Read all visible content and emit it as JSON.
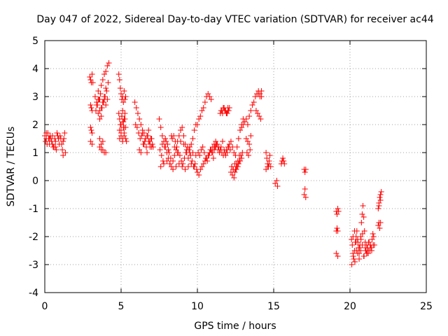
{
  "chart_data": {
    "type": "scatter",
    "title": "Day 047 of 2022, Sidereal Day-to-day VTEC variation (SDTVAR) for receiver ac44",
    "xlabel": "GPS time / hours",
    "ylabel": "SDTVAR / TECUs",
    "xlim": [
      0,
      25
    ],
    "ylim": [
      -4,
      5
    ],
    "xticks": [
      0,
      5,
      10,
      15,
      20,
      25
    ],
    "yticks": [
      -4,
      -3,
      -2,
      -1,
      0,
      1,
      2,
      3,
      4,
      5
    ],
    "grid": true,
    "marker": "plus",
    "color": "#ff0000",
    "series": [
      {
        "name": "SDTVAR",
        "x": [
          0.0,
          0.1,
          0.2,
          0.3,
          0.4,
          0.5,
          0.6,
          0.7,
          0.8,
          0.9,
          1.0,
          1.1,
          1.2,
          1.3,
          0.05,
          0.15,
          0.25,
          0.35,
          0.45,
          0.55,
          0.65,
          0.75,
          0.85,
          0.95,
          1.05,
          1.15,
          1.25,
          1.35,
          0.1,
          0.3,
          0.5,
          0.7,
          0.9,
          1.2,
          2.95,
          3.0,
          3.05,
          3.1,
          3.15,
          3.0,
          3.05,
          3.1,
          3.0,
          3.05,
          3.1,
          3.0,
          3.1,
          3.3,
          3.4,
          3.5,
          3.6,
          3.7,
          3.8,
          3.9,
          4.0,
          4.1,
          4.2,
          3.35,
          3.45,
          3.55,
          3.65,
          3.75,
          3.85,
          3.95,
          4.05,
          4.15,
          3.5,
          3.6,
          3.7,
          3.8,
          3.9,
          4.0,
          3.6,
          3.7,
          3.8,
          3.9,
          4.0,
          3.4,
          3.5,
          3.6,
          3.7,
          3.8,
          3.9,
          4.0,
          4.1,
          3.6,
          3.7,
          3.8,
          4.85,
          4.9,
          4.95,
          5.0,
          5.05,
          5.1,
          5.15,
          5.2,
          5.25,
          5.3,
          4.85,
          4.9,
          4.95,
          5.0,
          5.05,
          5.1,
          5.15,
          5.2,
          5.25,
          4.9,
          5.0,
          5.1,
          5.2,
          5.3,
          5.0,
          5.05,
          5.1,
          5.15,
          5.2,
          5.25,
          4.9,
          5.0,
          5.1,
          5.2,
          5.3,
          5.35,
          5.9,
          6.0,
          6.1,
          6.2,
          6.3,
          6.4,
          6.5,
          6.6,
          6.7,
          6.8,
          6.9,
          7.0,
          7.1,
          5.95,
          6.05,
          6.15,
          6.25,
          6.35,
          6.45,
          6.55,
          6.65,
          6.75,
          6.85,
          6.95,
          7.05,
          6.2,
          6.4,
          6.6,
          6.8,
          7.0,
          6.3,
          6.5,
          6.7,
          6.9,
          7.5,
          7.6,
          7.7,
          7.8,
          7.9,
          8.0,
          8.1,
          8.2,
          8.3,
          8.4,
          8.5,
          8.6,
          8.7,
          8.8,
          8.9,
          9.0,
          9.1,
          9.2,
          9.3,
          9.4,
          9.5,
          9.6,
          9.7,
          9.8,
          9.9,
          7.55,
          7.65,
          7.75,
          7.85,
          7.95,
          8.05,
          8.15,
          8.25,
          8.35,
          8.45,
          8.55,
          8.65,
          8.75,
          8.85,
          8.95,
          9.05,
          9.15,
          9.25,
          9.35,
          9.45,
          9.55,
          9.65,
          9.75,
          9.85,
          9.95,
          7.6,
          7.8,
          8.0,
          8.2,
          8.4,
          8.6,
          8.8,
          9.0,
          9.2,
          9.4,
          9.6,
          9.8,
          7.7,
          7.9,
          8.1,
          8.3,
          8.5,
          8.7,
          8.9,
          9.1,
          9.3,
          9.5,
          9.7,
          9.9,
          10.0,
          10.1,
          10.2,
          10.3,
          10.4,
          10.5,
          10.6,
          10.7,
          10.8,
          10.9,
          11.0,
          11.1,
          11.2,
          11.3,
          11.4,
          11.5,
          11.6,
          11.7,
          11.8,
          11.9,
          12.0,
          12.1,
          12.2,
          12.3,
          12.4,
          12.5,
          12.6,
          12.7,
          12.8,
          12.9,
          13.0,
          10.05,
          10.15,
          10.25,
          10.35,
          10.45,
          10.55,
          10.65,
          10.75,
          10.85,
          10.95,
          11.05,
          11.15,
          11.25,
          11.35,
          11.45,
          11.55,
          11.65,
          11.75,
          11.85,
          11.95,
          12.05,
          12.15,
          12.25,
          12.35,
          12.45,
          12.55,
          12.65,
          12.75,
          12.85,
          12.95,
          10.0,
          10.1,
          10.2,
          10.3,
          10.4,
          10.5,
          10.6,
          10.7,
          10.8,
          10.9,
          11.0,
          11.1,
          11.2,
          11.3,
          11.4,
          11.5,
          11.6,
          11.7,
          11.8,
          11.9,
          12.0,
          11.5,
          11.6,
          11.7,
          11.8,
          11.9,
          12.0,
          12.1,
          11.55,
          11.65,
          11.75,
          11.85,
          11.95,
          12.05,
          12.2,
          12.3,
          12.4,
          12.5,
          12.6,
          12.7,
          12.8,
          12.9,
          12.25,
          12.35,
          12.45,
          12.55,
          12.65,
          12.75,
          12.8,
          12.9,
          13.0,
          13.1,
          13.2,
          13.3,
          13.4,
          13.5,
          13.6,
          13.7,
          13.8,
          13.9,
          14.0,
          14.1,
          14.2,
          13.85,
          13.95,
          14.05,
          14.15,
          14.0,
          14.1,
          14.2,
          13.2,
          13.3,
          13.4,
          13.5,
          13.25,
          13.35,
          13.45,
          14.5,
          14.55,
          14.6,
          14.65,
          14.7,
          14.75,
          14.8,
          14.5,
          14.6,
          14.7,
          15.1,
          15.2,
          15.25,
          15.5,
          15.55,
          15.6,
          15.65,
          15.7,
          17.0,
          17.05,
          17.1,
          17.0,
          17.05,
          17.1,
          19.1,
          19.15,
          19.2,
          19.25,
          19.1,
          19.15,
          19.2,
          19.1,
          19.2,
          20.1,
          20.15,
          20.2,
          20.25,
          20.3,
          20.35,
          20.4,
          20.45,
          20.5,
          20.55,
          20.6,
          20.65,
          20.7,
          20.75,
          20.8,
          20.85,
          20.9,
          20.95,
          21.0,
          21.05,
          21.1,
          21.15,
          21.2,
          21.25,
          21.3,
          21.35,
          21.4,
          21.45,
          21.5,
          21.55,
          21.6,
          20.12,
          20.22,
          20.32,
          20.42,
          20.52,
          20.62,
          20.72,
          20.82,
          20.92,
          21.02,
          21.12,
          21.22,
          21.32,
          21.42,
          21.52,
          20.2,
          20.3,
          20.4,
          20.5,
          20.6,
          20.7,
          20.8,
          20.9,
          21.0,
          21.1,
          21.2,
          21.85,
          21.9,
          21.95,
          22.0,
          22.05,
          21.85,
          21.9,
          21.95,
          22.0,
          21.9,
          22.0
        ],
        "y": [
          1.6,
          1.5,
          1.7,
          1.3,
          1.5,
          1.6,
          1.2,
          1.4,
          1.7,
          1.5,
          1.6,
          1.3,
          1.4,
          1.7,
          1.4,
          1.3,
          1.5,
          1.6,
          1.4,
          1.2,
          1.5,
          1.1,
          1.6,
          1.3,
          1.5,
          1.1,
          1.5,
          1.0,
          1.7,
          1.5,
          1.3,
          1.2,
          1.5,
          0.9,
          3.7,
          3.6,
          3.5,
          3.8,
          3.5,
          2.7,
          2.6,
          2.5,
          1.9,
          1.8,
          1.7,
          1.4,
          1.3,
          3.0,
          2.8,
          3.2,
          2.9,
          3.4,
          3.6,
          3.8,
          3.9,
          4.1,
          4.2,
          2.5,
          2.7,
          2.9,
          3.1,
          2.6,
          2.8,
          3.0,
          3.2,
          3.5,
          2.4,
          2.2,
          2.6,
          2.8,
          2.9,
          3.3,
          1.5,
          1.3,
          1.1,
          1.0,
          1.0,
          2.7,
          2.9,
          2.5,
          2.3,
          2.8,
          3.0,
          2.7,
          2.9,
          1.2,
          1.1,
          1.4,
          3.8,
          3.6,
          3.3,
          3.1,
          2.9,
          3.0,
          2.8,
          3.2,
          2.9,
          3.0,
          2.4,
          2.2,
          2.0,
          1.8,
          2.3,
          2.5,
          2.1,
          1.9,
          2.2,
          1.5,
          1.7,
          1.4,
          1.6,
          1.5,
          2.0,
          2.3,
          2.1,
          1.9,
          2.2,
          2.4,
          1.8,
          1.6,
          1.5,
          1.7,
          1.9,
          1.4,
          2.8,
          2.6,
          2.4,
          2.2,
          2.0,
          1.8,
          1.7,
          1.5,
          1.6,
          1.4,
          1.3,
          1.5,
          1.2,
          2.0,
          1.9,
          1.7,
          1.5,
          1.6,
          1.3,
          1.4,
          1.2,
          1.6,
          1.4,
          1.5,
          1.3,
          1.1,
          1.7,
          1.5,
          1.8,
          1.2,
          1.0,
          1.3,
          1.0,
          1.2,
          2.2,
          1.9,
          1.6,
          1.4,
          1.2,
          1.0,
          0.8,
          0.6,
          0.5,
          0.7,
          0.9,
          1.1,
          1.4,
          1.6,
          1.8,
          1.9,
          1.6,
          1.3,
          1.0,
          0.8,
          1.0,
          1.3,
          1.5,
          1.8,
          2.0,
          1.1,
          0.9,
          0.7,
          1.2,
          1.4,
          1.3,
          1.0,
          0.8,
          1.5,
          1.6,
          1.4,
          1.2,
          1.0,
          0.9,
          0.7,
          0.6,
          0.8,
          1.0,
          1.2,
          1.1,
          0.9,
          0.7,
          0.5,
          0.6,
          0.4,
          0.5,
          0.6,
          0.7,
          0.6,
          0.4,
          0.5,
          0.6,
          0.5,
          0.4,
          0.5,
          0.6,
          0.5,
          1.3,
          1.5,
          1.1,
          1.6,
          1.2,
          1.0,
          1.4,
          1.3,
          1.1,
          1.2,
          1.0,
          0.9,
          2.0,
          2.2,
          2.3,
          2.5,
          2.6,
          2.8,
          3.0,
          3.1,
          3.0,
          2.9,
          1.0,
          1.1,
          1.2,
          1.3,
          1.2,
          1.1,
          2.5,
          2.6,
          2.5,
          2.4,
          2.6,
          1.3,
          1.4,
          1.2,
          1.0,
          0.9,
          1.2,
          1.5,
          1.8,
          2.0,
          2.2,
          1.0,
          0.9,
          1.1,
          1.2,
          1.0,
          0.8,
          0.7,
          0.9,
          1.1,
          1.0,
          0.8,
          1.2,
          1.3,
          1.1,
          1.0,
          1.2,
          1.4,
          1.1,
          0.9,
          1.0,
          1.2,
          1.1,
          0.5,
          0.4,
          0.6,
          0.4,
          0.5,
          0.7,
          0.9,
          1.0,
          0.3,
          0.2,
          0.4,
          0.5,
          0.6,
          0.7,
          0.8,
          0.9,
          1.0,
          1.1,
          1.2,
          1.3,
          1.4,
          1.3,
          1.2,
          1.1,
          1.0,
          0.9,
          1.0,
          1.1,
          1.2,
          2.4,
          2.5,
          2.6,
          2.5,
          2.4,
          2.5,
          2.6,
          2.5,
          2.4,
          2.6,
          2.5,
          2.4,
          2.5,
          0.3,
          0.2,
          0.1,
          0.4,
          0.5,
          0.6,
          0.7,
          0.8,
          0.5,
          0.4,
          0.3,
          0.6,
          0.7,
          0.9,
          1.8,
          1.9,
          2.0,
          2.1,
          2.2,
          2.0,
          2.3,
          2.5,
          2.7,
          2.8,
          3.0,
          3.1,
          3.2,
          3.1,
          3.0,
          2.5,
          2.4,
          2.3,
          2.2,
          3.1,
          3.0,
          3.2,
          1.5,
          1.4,
          1.3,
          1.6,
          1.0,
          0.9,
          1.1,
          1.0,
          0.8,
          0.6,
          0.5,
          0.7,
          0.9,
          0.5,
          0.4,
          0.5,
          0.6,
          -0.1,
          0.0,
          -0.2,
          0.6,
          0.7,
          0.8,
          0.7,
          0.6,
          0.4,
          0.3,
          0.4,
          -0.5,
          -0.3,
          -0.6,
          -1.1,
          -1.2,
          -1.0,
          -1.1,
          -1.8,
          -1.7,
          -1.8,
          -2.6,
          -2.7,
          -2.1,
          -2.3,
          -2.6,
          -2.8,
          -2.5,
          -2.2,
          -2.0,
          -1.8,
          -2.1,
          -2.4,
          -2.6,
          -2.3,
          -2.0,
          -1.5,
          -1.2,
          -0.9,
          -1.3,
          -1.8,
          -2.2,
          -2.5,
          -2.3,
          -2.4,
          -2.6,
          -2.2,
          -2.5,
          -2.3,
          -2.4,
          -2.1,
          -1.9,
          -2.0,
          -2.3,
          -3.0,
          -2.7,
          -2.9,
          -2.5,
          -2.2,
          -2.4,
          -2.1,
          -1.9,
          -2.7,
          -2.5,
          -2.6,
          -2.2,
          -2.4,
          -2.5,
          -2.3,
          -2.0,
          -1.8,
          -2.2,
          -2.6,
          -2.8,
          -2.5,
          -2.3,
          -2.7,
          -2.4,
          -2.6,
          -2.5,
          -1.0,
          -0.8,
          -0.6,
          -0.5,
          -0.4,
          -1.6,
          -1.5,
          -1.7,
          -1.5,
          -0.9,
          -0.7
        ]
      }
    ]
  }
}
